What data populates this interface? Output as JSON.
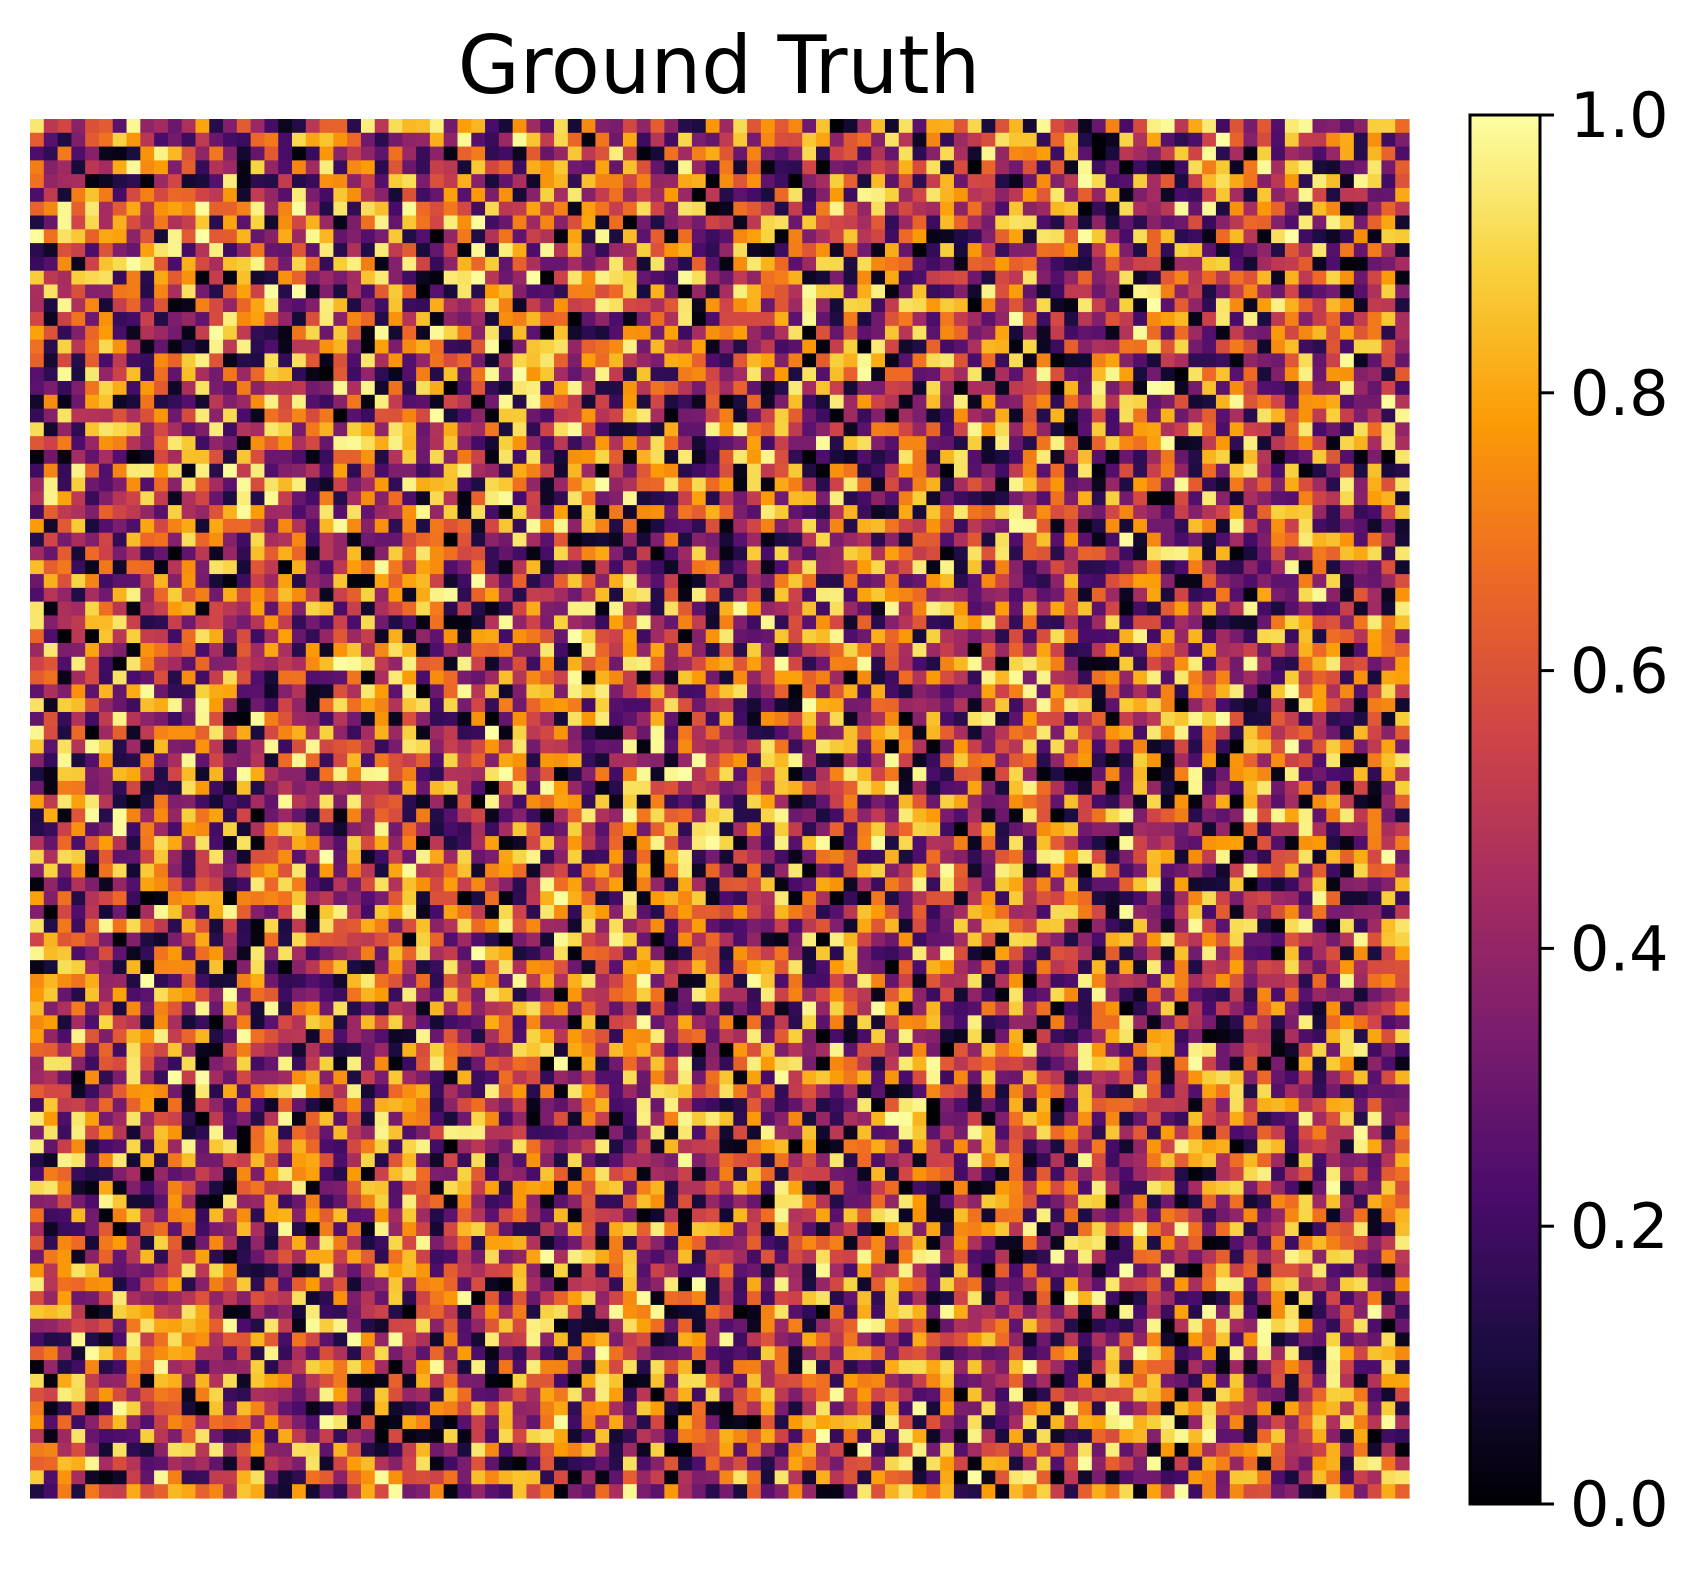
{
  "chart_data": {
    "type": "heatmap",
    "title": "Ground Truth",
    "xlabel": "",
    "ylabel": "",
    "grid": false,
    "axes_visible": false,
    "colormap": "inferno",
    "rows": 100,
    "cols": 100,
    "value_range": [
      0.0,
      1.0
    ],
    "value_distribution": "uniform random noise in [0, 1]",
    "colorbar": {
      "placement": "right",
      "range": [
        0.0,
        1.0
      ],
      "ticks": [
        0.0,
        0.2,
        0.4,
        0.6,
        0.8,
        1.0
      ],
      "tick_labels": [
        "0.0",
        "0.2",
        "0.4",
        "0.6",
        "0.8",
        "1.0"
      ]
    },
    "colormap_stops": [
      "#000004",
      "#1b0c41",
      "#4a0c6b",
      "#781c6d",
      "#a52c60",
      "#cf4446",
      "#ed6925",
      "#fb9b06",
      "#f7d13d",
      "#fcffa4"
    ]
  }
}
